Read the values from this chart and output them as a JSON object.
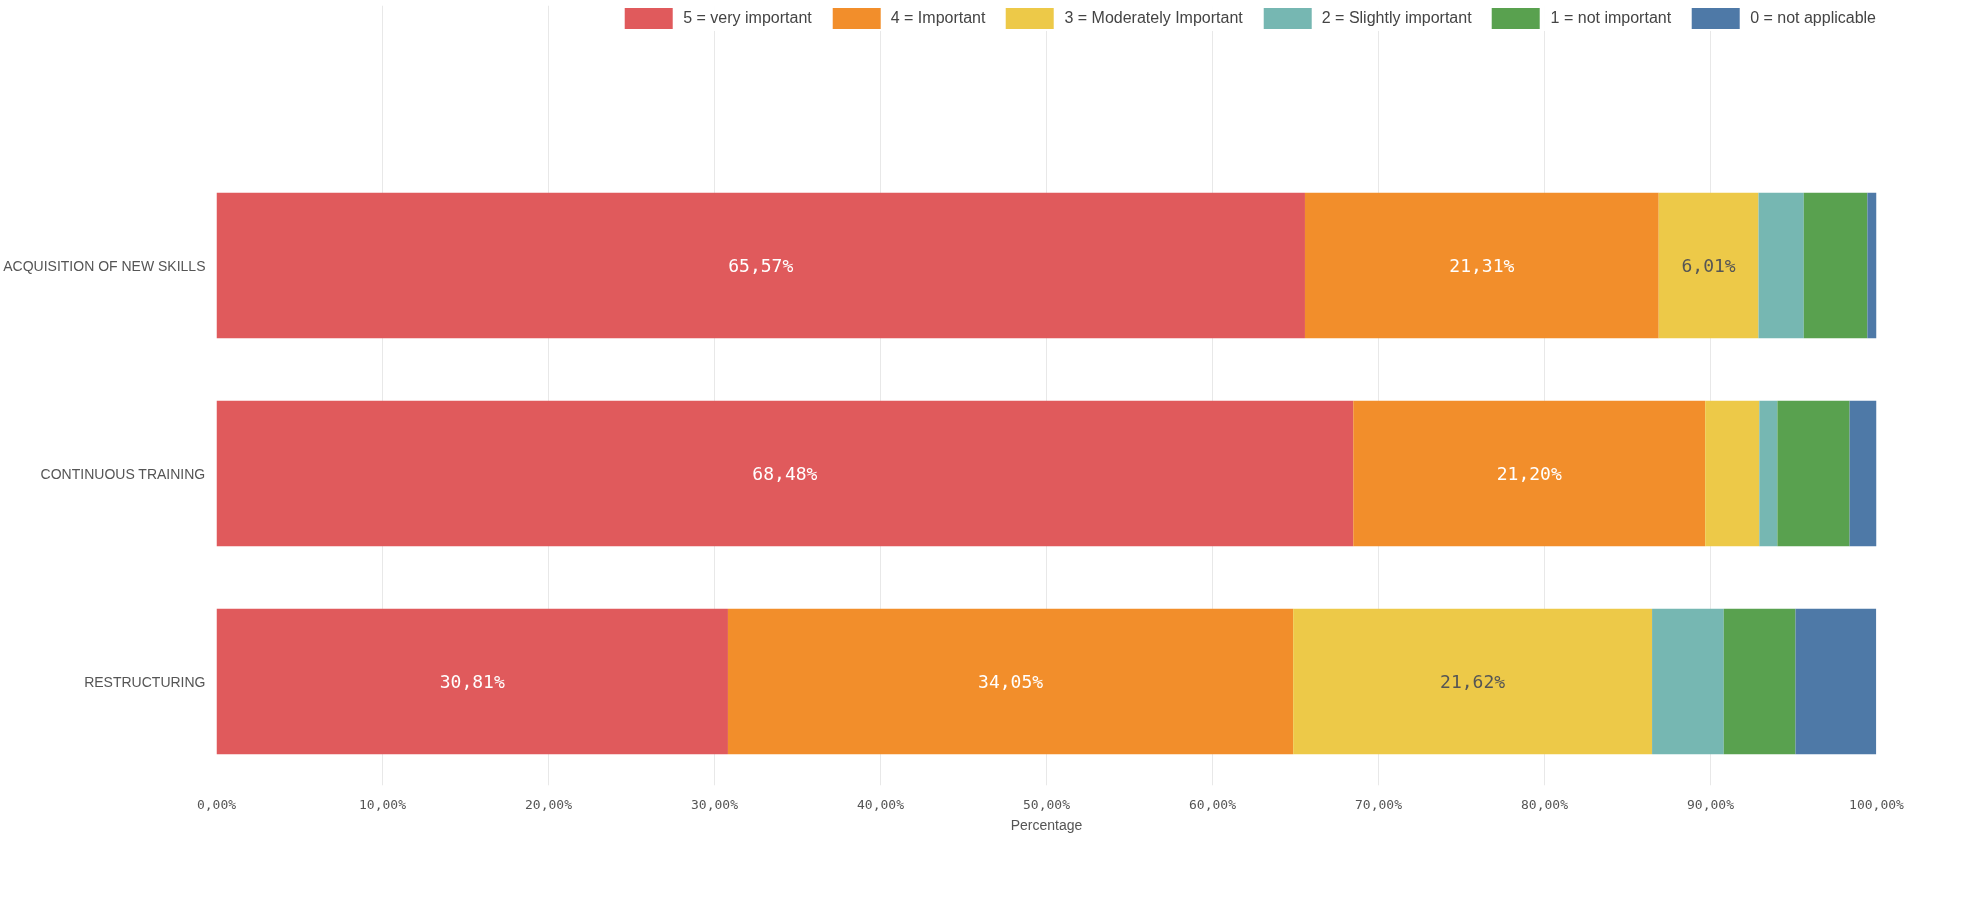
{
  "chart_data": {
    "type": "bar",
    "orientation": "horizontal",
    "stacked": true,
    "categories": [
      "ACQUISITION OF NEW SKILLS",
      "CONTINUOUS TRAINING",
      "RESTRUCTURING"
    ],
    "series": [
      {
        "name": "5 = very important",
        "color": "#e05a5c",
        "values": [
          65.57,
          68.48,
          30.81
        ],
        "value_labels": [
          "65,57%",
          "68,48%",
          "30,81%"
        ]
      },
      {
        "name": "4 = Important",
        "color": "#f28e2b",
        "values": [
          21.31,
          21.2,
          34.05
        ],
        "value_labels": [
          "21,31%",
          "21,20%",
          "34,05%"
        ]
      },
      {
        "name": "3 = Moderately Important",
        "color": "#edc948",
        "values": [
          6.01,
          3.26,
          21.62
        ],
        "value_labels": [
          "6,01%",
          null,
          "21,62%"
        ]
      },
      {
        "name": "2 = Slightly important",
        "color": "#76b7b2",
        "values": [
          2.73,
          1.09,
          4.32
        ],
        "value_labels": [
          null,
          null,
          null
        ]
      },
      {
        "name": "1 = not important",
        "color": "#59a14f",
        "values": [
          3.83,
          4.35,
          4.32
        ],
        "value_labels": [
          null,
          null,
          null
        ]
      },
      {
        "name": "0 = not applicable",
        "color": "#4e79a7",
        "values": [
          0.55,
          1.63,
          4.86
        ],
        "value_labels": [
          null,
          null,
          null
        ]
      }
    ],
    "xlabel": "Percentage",
    "xlim": [
      0,
      100
    ],
    "xticks": [
      {
        "value": 0,
        "label": "0,00%"
      },
      {
        "value": 10,
        "label": "10,00%"
      },
      {
        "value": 20,
        "label": "20,00%"
      },
      {
        "value": 30,
        "label": "30,00%"
      },
      {
        "value": 40,
        "label": "40,00%"
      },
      {
        "value": 50,
        "label": "50,00%"
      },
      {
        "value": 60,
        "label": "60,00%"
      },
      {
        "value": 70,
        "label": "70,00%"
      },
      {
        "value": 80,
        "label": "80,00%"
      },
      {
        "value": 90,
        "label": "90,00%"
      },
      {
        "value": 100,
        "label": "100,00%"
      }
    ],
    "grid": "x",
    "legend": "top"
  }
}
